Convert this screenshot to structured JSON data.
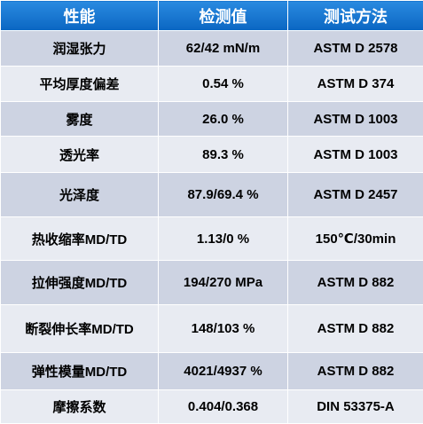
{
  "table": {
    "header": [
      "性能",
      "检测值",
      "测试方法"
    ],
    "rows": [
      [
        "润湿张力",
        "62/42 mN/m",
        "ASTM D 2578"
      ],
      [
        "平均厚度偏差",
        "0.54 %",
        "ASTM D 374"
      ],
      [
        "雾度",
        "26.0 %",
        "ASTM D 1003"
      ],
      [
        "透光率",
        "89.3 %",
        "ASTM D 1003"
      ],
      [
        "光泽度",
        "87.9/69.4 %",
        "ASTM D 2457"
      ],
      [
        "热收缩率MD/TD",
        "1.13/0 %",
        "150℃/30min"
      ],
      [
        "拉伸强度MD/TD",
        "194/270 MPa",
        "ASTM D 882"
      ],
      [
        "断裂伸长率MD/TD",
        "148/103 %",
        "ASTM D 882"
      ],
      [
        "弹性模量MD/TD",
        "4021/4937 %",
        "ASTM D 882"
      ],
      [
        "摩擦系数",
        "0.404/0.368",
        "DIN 53375-A"
      ]
    ]
  }
}
